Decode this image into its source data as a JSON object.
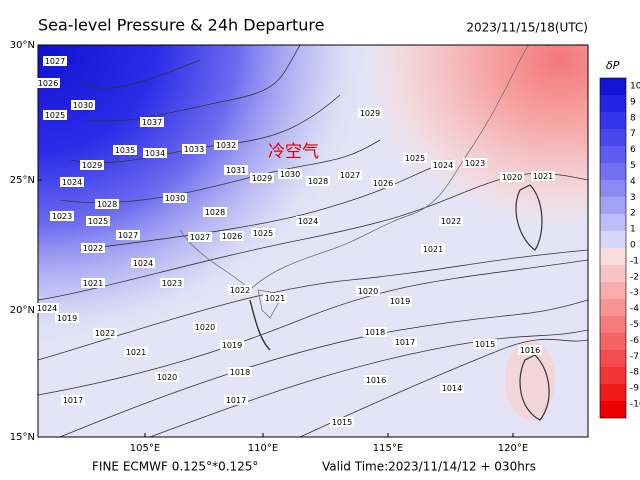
{
  "header": {
    "title": "Sea-level Pressure & 24h Departure",
    "datetime": "2023/11/15/18(UTC)"
  },
  "map": {
    "lat_labels": [
      "30°N",
      "25°N",
      "20°N",
      "15°N"
    ],
    "lon_labels": [
      "105°E",
      "110°E",
      "115°E",
      "120°E"
    ],
    "annotation": "冷空气",
    "isobar_labels": [
      1027,
      1026,
      1025,
      1030,
      1037,
      1035,
      1034,
      1033,
      1032,
      1029,
      1024,
      1028,
      1030,
      1031,
      1029,
      1030,
      1028,
      1027,
      1026,
      1025,
      1024,
      1023,
      1020,
      1021,
      1022,
      1021,
      1020,
      1019,
      1018,
      1017,
      1016,
      1015,
      1014,
      1015,
      1025,
      1027,
      1027,
      1026,
      1028,
      1025,
      1024,
      1024,
      1023,
      1022,
      1021,
      1020,
      1019,
      1018,
      1017,
      1020,
      1021,
      1022,
      1019,
      1017,
      1024,
      1023,
      1022,
      1021,
      1016,
      1029
    ]
  },
  "colorbar": {
    "label": "δP",
    "ticks": [
      10,
      9,
      8,
      7,
      6,
      5,
      4,
      3,
      2,
      1,
      0,
      -1,
      -2,
      -3,
      -4,
      -5,
      -6,
      -7,
      -8,
      -9,
      -10
    ],
    "colors": [
      "#1414d8",
      "#2424e4",
      "#3434ec",
      "#4848ee",
      "#5c5cf0",
      "#7272f0",
      "#8a8af2",
      "#a2a2f4",
      "#bcbcf6",
      "#d6d6f8",
      "#fadcdc",
      "#f8c4c4",
      "#f8acac",
      "#f69494",
      "#f67c7c",
      "#f46464",
      "#f44c4c",
      "#f23434",
      "#f01c1c",
      "#ee0000"
    ]
  },
  "footer": {
    "source": "FINE ECMWF 0.125°*0.125°",
    "valid": "Valid Time:2023/11/14/12 + 030hrs"
  }
}
